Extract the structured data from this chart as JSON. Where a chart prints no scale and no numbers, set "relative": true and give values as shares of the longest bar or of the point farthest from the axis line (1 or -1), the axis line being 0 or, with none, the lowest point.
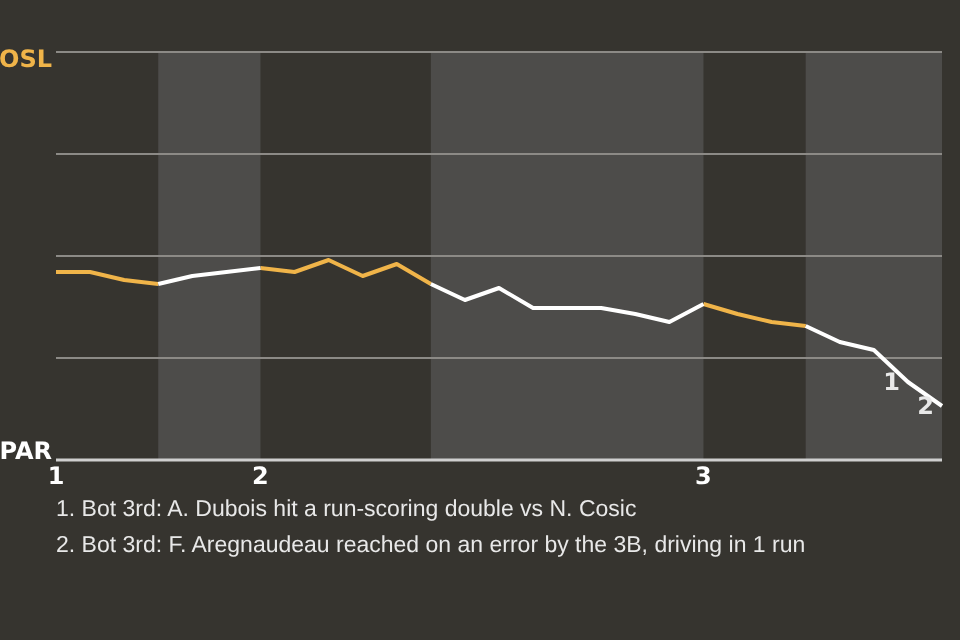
{
  "chart_data": {
    "type": "line",
    "relative": true,
    "categories": [
      "1",
      null,
      null,
      null,
      null,
      null,
      "2",
      null,
      null,
      null,
      null,
      null,
      null,
      null,
      null,
      null,
      null,
      null,
      null,
      "3",
      null,
      null,
      null,
      null,
      null,
      null,
      null
    ],
    "series": [
      {
        "color": "#f0b449",
        "values": [
          0.94,
          0.94,
          0.9,
          0.88,
          null,
          null,
          0.96,
          0.94,
          1,
          0.92,
          0.98,
          0.88,
          null,
          null,
          null,
          null,
          null,
          null,
          null,
          0.78,
          0.73,
          0.69,
          0.67,
          null,
          null,
          null,
          null
        ]
      },
      {
        "color": "#ffffff",
        "values": [
          null,
          null,
          null,
          0.88,
          0.92,
          0.94,
          0.96,
          null,
          null,
          null,
          null,
          0.88,
          0.8,
          0.86,
          0.76,
          0.76,
          0.76,
          0.73,
          0.69,
          0.78,
          null,
          null,
          0.67,
          0.59,
          0.55,
          0.39,
          0.27
        ]
      }
    ],
    "marker": "none",
    "line_style": "solid",
    "ref_lines": [
      {
        "axis": "y",
        "value": 0.51,
        "color": "#8c8a86"
      },
      {
        "axis": "y",
        "value": 1.02,
        "color": "#8c8a86"
      },
      {
        "axis": "y",
        "value": 1.53,
        "color": "#8c8a86"
      },
      {
        "axis": "y",
        "value": 2.04,
        "color": "#8c8a86"
      }
    ],
    "annotations": [
      "OSL",
      "PAR",
      {
        "text": "1",
        "y": 0.39
      },
      {
        "text": "2",
        "y": 0.27
      },
      "1. Bot 3rd: A. Dubois hit a run-scoring double vs N. Cosic",
      "2. Bot 3rd: F. Aregnaudeau reached on an error by the 3B, driving in 1 run"
    ]
  }
}
